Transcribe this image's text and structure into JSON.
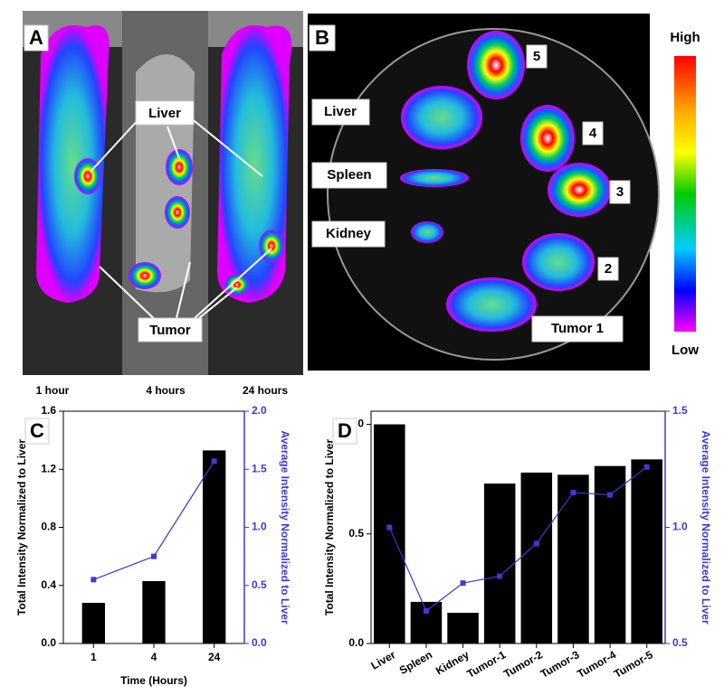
{
  "figure": {
    "panel_a": {
      "letter": "A",
      "liver": "Liver",
      "tumor": "Tumor",
      "times": [
        "1 hour",
        "4 hours",
        "24 hours"
      ]
    },
    "panel_b": {
      "letter": "B",
      "liver": "Liver",
      "spleen": "Spleen",
      "kidney": "Kidney",
      "tumors": [
        "5",
        "4",
        "3",
        "2",
        "Tumor 1"
      ],
      "high": "High",
      "low": "Low"
    }
  },
  "chart_data": [
    {
      "type": "bar",
      "letter": "C",
      "categories": [
        "1",
        "4",
        "24"
      ],
      "xlabel": "Time (Hours)",
      "ylabel": "Total Intensity Normalized to Liver",
      "y2label": "Average Intensity Normalized to Liver",
      "ylim": [
        0,
        1.6
      ],
      "yticks": [
        {
          "value": 0,
          "label": "0.0"
        },
        0.4,
        0.8,
        1.2,
        1.6
      ],
      "y2lim": [
        0,
        2
      ],
      "y2ticks": [
        {
          "value": 0,
          "label": "0.0"
        },
        0.5,
        {
          "value": 1,
          "label": "1.0"
        },
        1.5,
        {
          "value": 2,
          "label": "2.0"
        }
      ],
      "series": [
        {
          "type": "bar",
          "color": "#000000",
          "values": [
            0.28,
            0.43,
            1.33
          ]
        },
        {
          "type": "line",
          "axis": "y2",
          "color": "#3b3bd0",
          "values": [
            0.55,
            0.75,
            1.57
          ]
        }
      ]
    },
    {
      "type": "bar",
      "letter": "D",
      "categories": [
        "Liver",
        "Spleen",
        "Kidney",
        "Tumor-1",
        "Tumor-2",
        "Tumor-3",
        "Tumor-4",
        "Tumor-5"
      ],
      "ylabel": "Total Intensity Normalized to Liver",
      "y2label": "Average Intensity Normalized to Liver",
      "ylim": [
        0,
        1.06
      ],
      "yticks": [
        {
          "value": 0,
          "label": "0.0"
        },
        0.5,
        {
          "value": 1,
          "label": "1.0"
        }
      ],
      "y2lim": [
        0.5,
        1.5
      ],
      "y2ticks": [
        0.5,
        {
          "value": 1,
          "label": "1.0"
        },
        1.5
      ],
      "series": [
        {
          "type": "bar",
          "color": "#000000",
          "values": [
            1.0,
            0.19,
            0.14,
            0.73,
            0.78,
            0.77,
            0.81,
            0.84
          ]
        },
        {
          "type": "line",
          "axis": "y2",
          "color": "#3b3bd0",
          "values": [
            1.0,
            0.64,
            0.76,
            0.79,
            0.93,
            1.15,
            1.14,
            1.26
          ]
        }
      ]
    }
  ]
}
